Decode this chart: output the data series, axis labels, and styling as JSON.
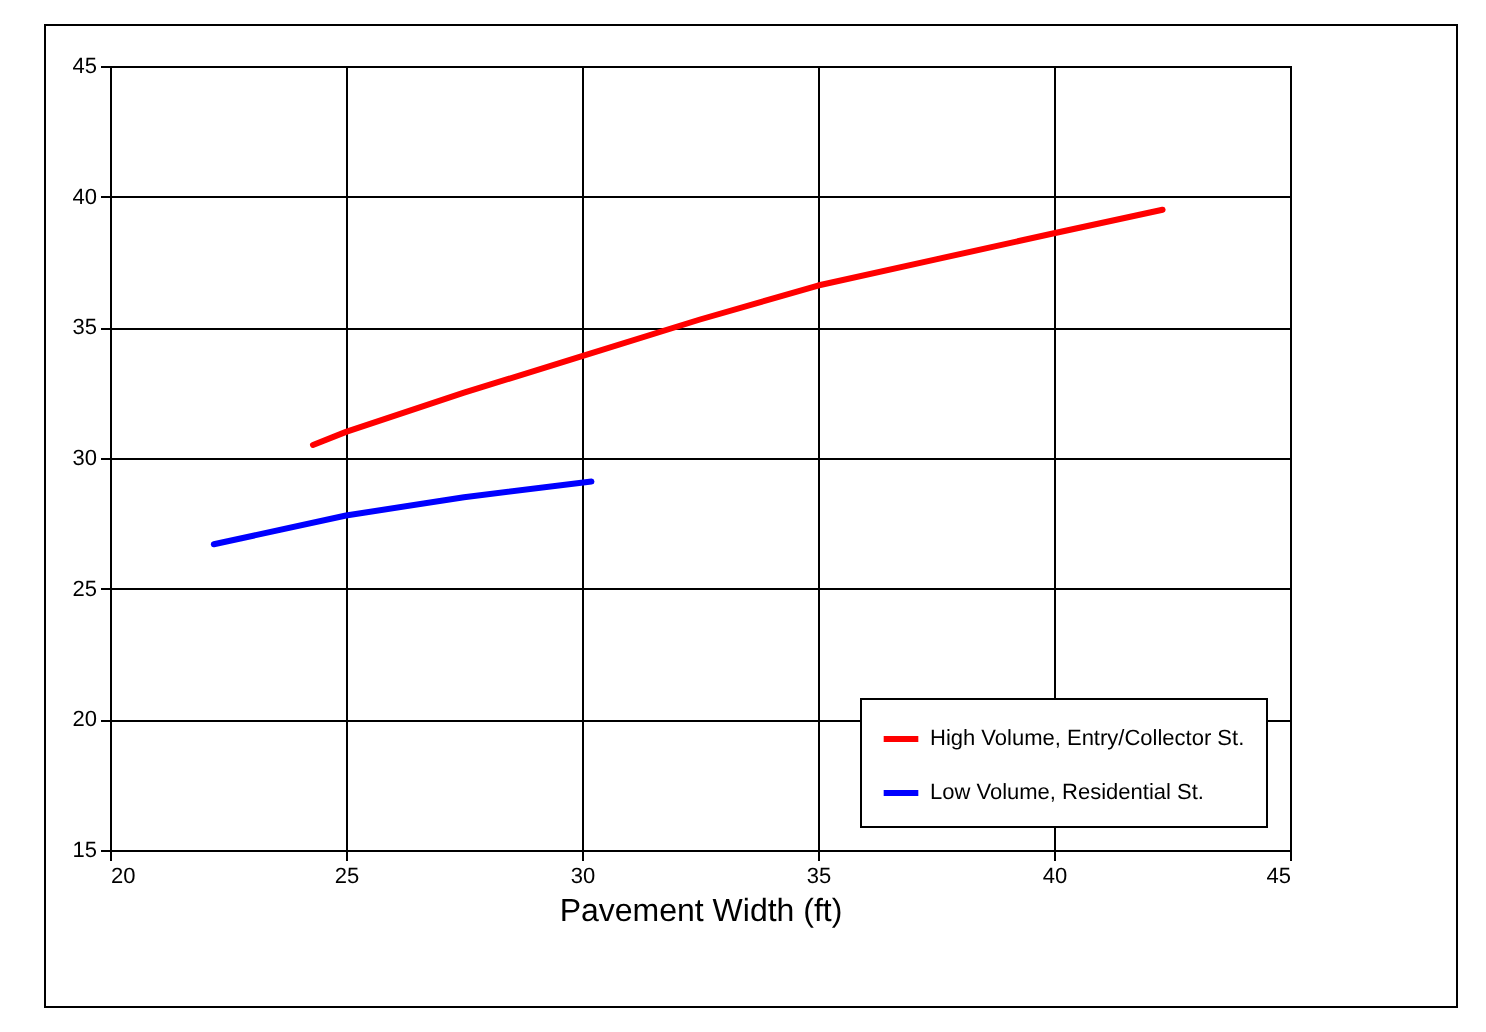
{
  "chart_data": {
    "type": "line",
    "xlabel": "Pavement Width (ft)",
    "series": [
      {
        "name": "High Volume, Entry/Collector St.",
        "color": "#ff0000",
        "x": [
          24.3,
          25,
          27.5,
          30,
          32.5,
          35,
          37.5,
          40,
          42.3
        ],
        "values": [
          30.5,
          31.0,
          32.5,
          33.9,
          35.3,
          36.6,
          37.6,
          38.6,
          39.5
        ]
      },
      {
        "name": "Low Volume, Residential St.",
        "color": "#0000ff",
        "x": [
          22.2,
          25,
          27.5,
          30.2
        ],
        "values": [
          26.7,
          27.8,
          28.5,
          29.1
        ]
      }
    ],
    "xlim": [
      20,
      45
    ],
    "xticks": [
      20,
      25,
      30,
      35,
      40,
      45
    ],
    "ylim": [
      15,
      45
    ],
    "yticks": [
      15,
      20,
      25,
      30,
      35,
      40,
      45
    ],
    "grid": true,
    "legend": "bottom right",
    "marker": "none",
    "line_style": "solid"
  }
}
